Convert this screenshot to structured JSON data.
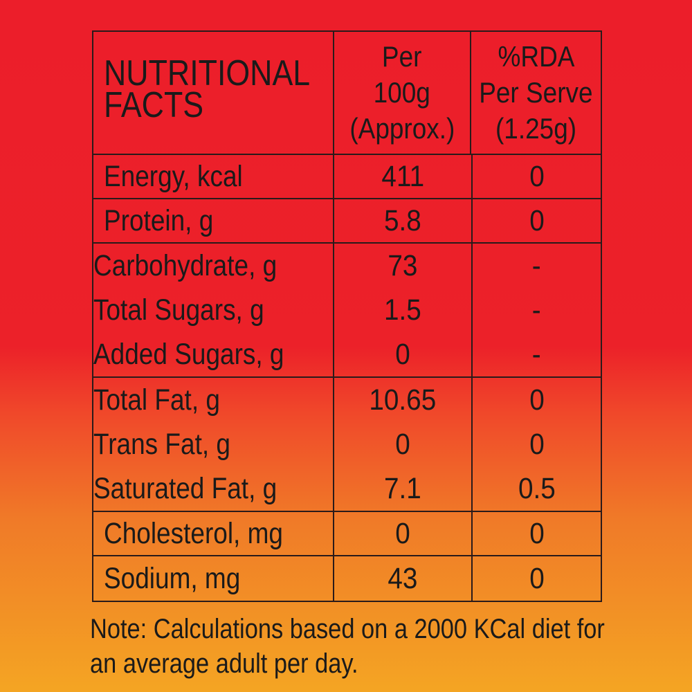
{
  "header": {
    "title_lines": [
      "NUTRITIONAL",
      "FACTS"
    ],
    "col2_lines": [
      "Per",
      "100g",
      "(Approx.)"
    ],
    "col3_lines": [
      "%RDA",
      "Per Serve",
      "(1.25g)"
    ]
  },
  "rows": [
    {
      "nutrient": "Energy, kcal",
      "per100g": "411",
      "rda": "0"
    },
    {
      "nutrient": "Protein, g",
      "per100g": "5.8",
      "rda": "0"
    }
  ],
  "carb_group": [
    {
      "nutrient": "Carbohydrate, g",
      "per100g": "73",
      "rda": "-"
    },
    {
      "nutrient": "Total Sugars, g",
      "per100g": "1.5",
      "rda": "-"
    },
    {
      "nutrient": "Added Sugars, g",
      "per100g": "0",
      "rda": "-"
    }
  ],
  "fat_group": [
    {
      "nutrient": "Total Fat, g",
      "per100g": "10.65",
      "rda": "0"
    },
    {
      "nutrient": "Trans Fat, g",
      "per100g": "0",
      "rda": "0"
    },
    {
      "nutrient": "Saturated Fat, g",
      "per100g": "7.1",
      "rda": "0.5"
    }
  ],
  "rows_bottom": [
    {
      "nutrient": "Cholesterol, mg",
      "per100g": "0",
      "rda": "0"
    },
    {
      "nutrient": "Sodium, mg",
      "per100g": "43",
      "rda": "0"
    }
  ],
  "note": {
    "lines": [
      "Note: Calculations based on a 2000 KCal diet for",
      "an average adult per day."
    ]
  },
  "colors": {
    "background_top": "#ec1e2a",
    "background_bottom": "#f4a523",
    "border": "#2a1a1a"
  }
}
